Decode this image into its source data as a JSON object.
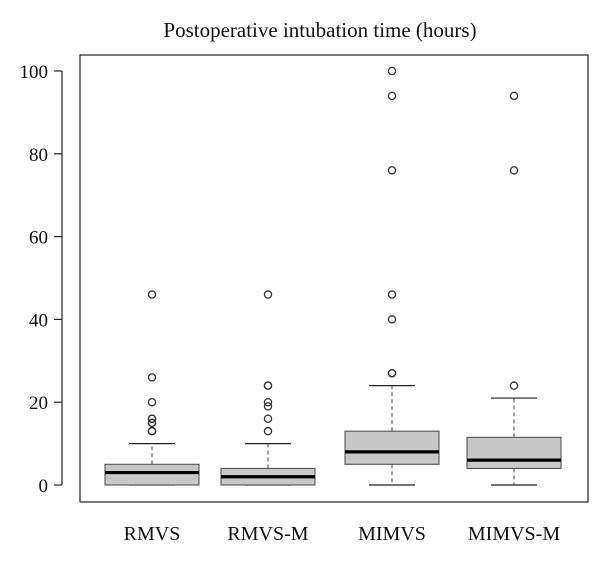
{
  "chart_data": {
    "type": "boxplot",
    "title": "Postoperative intubation time (hours)",
    "xlabel": "",
    "ylabel": "",
    "ylim": [
      -4,
      104
    ],
    "yticks": [
      0,
      20,
      40,
      60,
      80,
      100
    ],
    "grid": false,
    "categories": [
      "RMVS",
      "RMVS-M",
      "MIMVS",
      "MIMVS-M"
    ],
    "boxes": [
      {
        "category": "RMVS",
        "whisker_low": 0,
        "q1": 0,
        "median": 3,
        "q3": 5,
        "whisker_high": 10,
        "outliers": [
          13,
          13,
          15,
          15,
          16,
          16,
          20,
          26,
          46
        ]
      },
      {
        "category": "RMVS-M",
        "whisker_low": 0,
        "q1": 0,
        "median": 2,
        "q3": 4,
        "whisker_high": 10,
        "outliers": [
          13,
          16,
          19,
          20,
          24,
          24,
          46
        ]
      },
      {
        "category": "MIMVS",
        "whisker_low": 0,
        "q1": 5,
        "median": 8,
        "q3": 13,
        "whisker_high": 24,
        "outliers": [
          27,
          27,
          40,
          46,
          76,
          94,
          100
        ]
      },
      {
        "category": "MIMVS-M",
        "whisker_low": 0,
        "q1": 4,
        "median": 6,
        "q3": 11.5,
        "whisker_high": 21,
        "outliers": [
          24,
          76,
          94
        ]
      }
    ],
    "colors": {
      "box_fill": "#c8c8c8",
      "box_stroke": "#555555",
      "median": "#000000",
      "axis": "#222222",
      "outlier_stroke": "#333333"
    }
  }
}
